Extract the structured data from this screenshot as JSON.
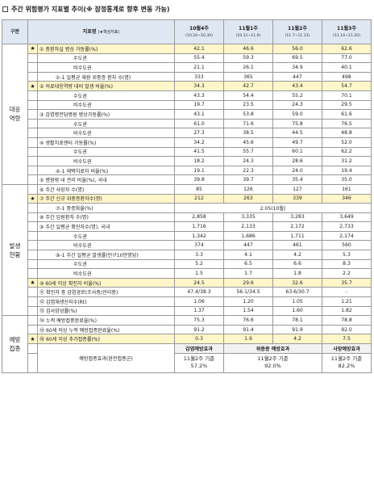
{
  "title": "주간 위험평가 지표별 추이(※ 잠정통계로 향후 변동 가능)",
  "header": {
    "category": "구분",
    "indicator": "지표명",
    "indicator_note": "(★핵심지표)",
    "weeks": [
      {
        "name": "10월4주",
        "range": "(10.24~10.30)"
      },
      {
        "name": "11월1주",
        "range": "(10.31~11.6)"
      },
      {
        "name": "11월2주",
        "range": "(11.7~11.13)"
      },
      {
        "name": "11월3주",
        "range": "(11.14~11.20)"
      }
    ]
  },
  "groups": {
    "capacity": "대응\n역량",
    "occurrence": "발생\n현황",
    "vaccination": "예방\n접종"
  },
  "rows": [
    {
      "star": "★",
      "label": "① 중환자실 병상 가동률(%)",
      "hl": true,
      "values": [
        "42.1",
        "46.6",
        "56.0",
        "62.6"
      ]
    },
    {
      "star": "",
      "label": "수도권",
      "values": [
        "55.4",
        "59.3",
        "69.5",
        "77.0"
      ]
    },
    {
      "star": "",
      "label": "비수도권",
      "values": [
        "21.1",
        "26.1",
        "34.9",
        "40.1"
      ]
    },
    {
      "star": "",
      "label": "①-1 일평균 재원 위중증 환자 수(명)",
      "values": [
        "333",
        "365",
        "447",
        "498"
      ]
    },
    {
      "star": "★",
      "label": "② 의료대응역량 대비 발생 비율(%)",
      "hl": true,
      "values": [
        "34.3",
        "42.7",
        "43.4",
        "54.7"
      ]
    },
    {
      "star": "",
      "label": "수도권",
      "values": [
        "43.3",
        "54.4",
        "55.2",
        "70.1"
      ]
    },
    {
      "star": "",
      "label": "비수도권",
      "values": [
        "19.7",
        "23.5",
        "24.3",
        "29.5"
      ]
    },
    {
      "star": "",
      "label": "③ 감염병전담병원 병상가동률(%)",
      "values": [
        "43.1",
        "53.8",
        "59.0",
        "61.6"
      ]
    },
    {
      "star": "",
      "label": "수도권",
      "values": [
        "61.0",
        "71.6",
        "75.8",
        "76.5"
      ]
    },
    {
      "star": "",
      "label": "비수도권",
      "values": [
        "27.3",
        "38.5",
        "44.5",
        "48.8"
      ]
    },
    {
      "star": "",
      "label": "④ 생활치료센터 가동률(%)",
      "values": [
        "34.2",
        "45.6",
        "49.7",
        "52.0"
      ]
    },
    {
      "star": "",
      "label": "수도권",
      "values": [
        "41.5",
        "55.7",
        "60.1",
        "62.2"
      ]
    },
    {
      "star": "",
      "label": "비수도권",
      "values": [
        "18.2",
        "24.3",
        "28.6",
        "31.2"
      ]
    },
    {
      "star": "",
      "label": "④-1 재택치료자 비율(%)",
      "values": [
        "19.1",
        "22.3",
        "24.0",
        "19.4"
      ]
    },
    {
      "star": "",
      "label": "⑤ 병원밖 내 관리 비율(%), 국내",
      "values": [
        "39.8",
        "39.7",
        "35.4",
        "35.0"
      ]
    },
    {
      "star": "",
      "label": "⑥ 주간 사망자 수(명)",
      "values": [
        "85",
        "126",
        "127",
        "161"
      ]
    },
    {
      "star": "★",
      "label": "⑦ 주간 신규 위중증환자수(명)",
      "hl": true,
      "values": [
        "212",
        "263",
        "339",
        "346"
      ]
    },
    {
      "star": "",
      "label": "⑦-1 중증화율(%)",
      "merged": "2.05(10월)"
    },
    {
      "star": "",
      "label": "⑧ 주간 입원환자 수(명)",
      "values": [
        "2,858",
        "3,335",
        "3,283",
        "3,649"
      ]
    },
    {
      "star": "",
      "label": "⑨ 주간 일평균 확진자수(명), 국내",
      "values": [
        "1,716",
        "2,133",
        "2,172",
        "2,733"
      ]
    },
    {
      "star": "",
      "label": "수도권",
      "values": [
        "1,342",
        "1,686",
        "1,711",
        "2,174"
      ]
    },
    {
      "star": "",
      "label": "비수도권",
      "values": [
        "374",
        "447",
        "461",
        "560"
      ]
    },
    {
      "star": "",
      "label": "⑨-1 주간 일평균 발생률(인구10만명당)",
      "values": [
        "3.3",
        "4.1",
        "4.2",
        "5.3"
      ]
    },
    {
      "star": "",
      "label": "수도권",
      "values": [
        "5.2",
        "6.5",
        "6.6",
        "8.3"
      ]
    },
    {
      "star": "",
      "label": "비수도권",
      "values": [
        "1.5",
        "1.7",
        "1.8",
        "2.2"
      ]
    },
    {
      "star": "★",
      "label": "⑩ 60세 이상 확진자 비율(%)",
      "hl": true,
      "values": [
        "24.5",
        "29.6",
        "32.6",
        "35.7"
      ]
    },
    {
      "star": "",
      "label": "⑪ 확진자 중 감염경로(조사중/관리중)",
      "values": [
        "47.4/38.3",
        "56.1/34.5",
        "63.6/30.7",
        "-"
      ]
    },
    {
      "star": "",
      "label": "⑫ 감염재생산지수(Rt)",
      "values": [
        "1.06",
        "1.20",
        "1.05",
        "1.21"
      ]
    },
    {
      "star": "",
      "label": "⑬ 검사양성률(%)",
      "values": [
        "1.37",
        "1.54",
        "1.60",
        "1.82"
      ]
    },
    {
      "star": "",
      "label": "⑭ 누적 예방접종완료율(%)",
      "values": [
        "75.3",
        "76.6",
        "78.1",
        "78.8"
      ]
    },
    {
      "star": "",
      "label": "⑮ 60세 이상 누적 예방접종완료율(%)",
      "values": [
        "91.2",
        "91.4",
        "91.9",
        "92.0"
      ]
    },
    {
      "star": "★",
      "label": "⑯ 60세 이상 추가접종률(%)",
      "hl": true,
      "values": [
        "0.3",
        "1.9",
        "4.2",
        "7.5"
      ]
    }
  ],
  "effect": {
    "label": "예방접종효과(완전접종군)",
    "headers": [
      "감염예방효과",
      "위중증 예방효과",
      "사망예방효과"
    ],
    "cells": [
      {
        "basis": "11월2주 기준",
        "value": "57.2%"
      },
      {
        "basis": "11월2주 기준",
        "value": "92.0%"
      },
      {
        "basis": "11월2주 기준",
        "value": "82.2%"
      }
    ]
  }
}
